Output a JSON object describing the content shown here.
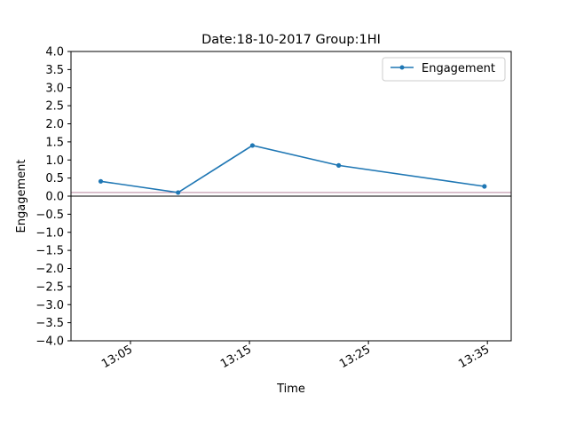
{
  "chart_data": {
    "type": "line",
    "title": "Date:18-10-2017 Group:1HI",
    "xlabel": "Time",
    "ylabel": "Engagement",
    "x_ticks": [
      "13:05",
      "13:15",
      "13:25",
      "13:35"
    ],
    "y_ticks": [
      "4.0",
      "3.5",
      "3.0",
      "2.5",
      "2.0",
      "1.5",
      "1.0",
      "0.5",
      "0.0",
      "−0.5",
      "−1.0",
      "−1.5",
      "−2.0",
      "−2.5",
      "−3.0",
      "−3.5",
      "−4.0"
    ],
    "ylim": [
      -4.0,
      4.0
    ],
    "xlim": [
      "13:00",
      "13:37"
    ],
    "grid": false,
    "legend": "top-right",
    "series": [
      {
        "name": "Engagement",
        "color": "#1f77b4",
        "x": [
          "13:02:30",
          "13:09:00",
          "13:15:15",
          "13:22:30",
          "13:34:45"
        ],
        "values": [
          0.41,
          0.1,
          1.4,
          0.85,
          0.27
        ]
      }
    ],
    "reference_lines": [
      {
        "y": 0.0,
        "color": "#000000"
      },
      {
        "y": 0.1,
        "color": "#8b3a62"
      }
    ]
  }
}
